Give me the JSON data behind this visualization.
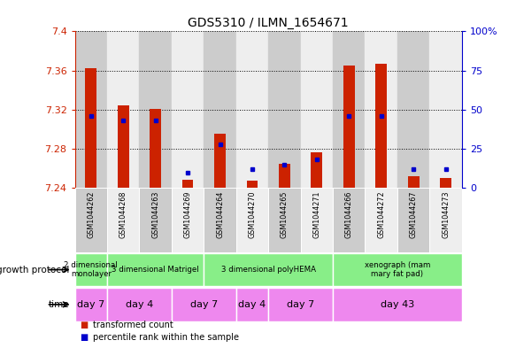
{
  "title": "GDS5310 / ILMN_1654671",
  "samples": [
    "GSM1044262",
    "GSM1044268",
    "GSM1044263",
    "GSM1044269",
    "GSM1044264",
    "GSM1044270",
    "GSM1044265",
    "GSM1044271",
    "GSM1044266",
    "GSM1044272",
    "GSM1044267",
    "GSM1044273"
  ],
  "transformed_counts": [
    7.362,
    7.324,
    7.321,
    7.248,
    7.295,
    7.247,
    7.265,
    7.276,
    7.365,
    7.367,
    7.252,
    7.25
  ],
  "percentile_ranks": [
    46,
    43,
    43,
    10,
    28,
    12,
    15,
    18,
    46,
    46,
    12,
    12
  ],
  "y_min": 7.24,
  "y_max": 7.4,
  "y_ticks": [
    7.24,
    7.28,
    7.32,
    7.36,
    7.4
  ],
  "y2_ticks": [
    0,
    25,
    50,
    75,
    100
  ],
  "bar_color": "#cc2200",
  "dot_color": "#0000cc",
  "bg_color": "#ffffff",
  "y_label_color": "#cc2200",
  "y2_label_color": "#0000cc",
  "growth_protocol_groups": [
    {
      "label": "2 dimensional\nmonolayer",
      "start": 0,
      "end": 1,
      "color": "#88ee88"
    },
    {
      "label": "3 dimensional Matrigel",
      "start": 1,
      "end": 4,
      "color": "#88ee88"
    },
    {
      "label": "3 dimensional polyHEMA",
      "start": 4,
      "end": 8,
      "color": "#88ee88"
    },
    {
      "label": "xenograph (mam\nmary fat pad)",
      "start": 8,
      "end": 12,
      "color": "#88ee88"
    }
  ],
  "time_groups": [
    {
      "label": "day 7",
      "start": 0,
      "end": 1,
      "color": "#ee88ee"
    },
    {
      "label": "day 4",
      "start": 1,
      "end": 3,
      "color": "#ee88ee"
    },
    {
      "label": "day 7",
      "start": 3,
      "end": 5,
      "color": "#ee88ee"
    },
    {
      "label": "day 4",
      "start": 5,
      "end": 6,
      "color": "#ee88ee"
    },
    {
      "label": "day 7",
      "start": 6,
      "end": 8,
      "color": "#ee88ee"
    },
    {
      "label": "day 43",
      "start": 8,
      "end": 12,
      "color": "#ee88ee"
    }
  ],
  "legend_items": [
    {
      "color": "#cc2200",
      "label": "transformed count"
    },
    {
      "color": "#0000cc",
      "label": "percentile rank within the sample"
    }
  ],
  "sample_bg_colors": [
    "#cccccc",
    "#eeeeee",
    "#cccccc",
    "#eeeeee",
    "#cccccc",
    "#eeeeee",
    "#cccccc",
    "#eeeeee",
    "#cccccc",
    "#eeeeee",
    "#cccccc",
    "#eeeeee"
  ]
}
